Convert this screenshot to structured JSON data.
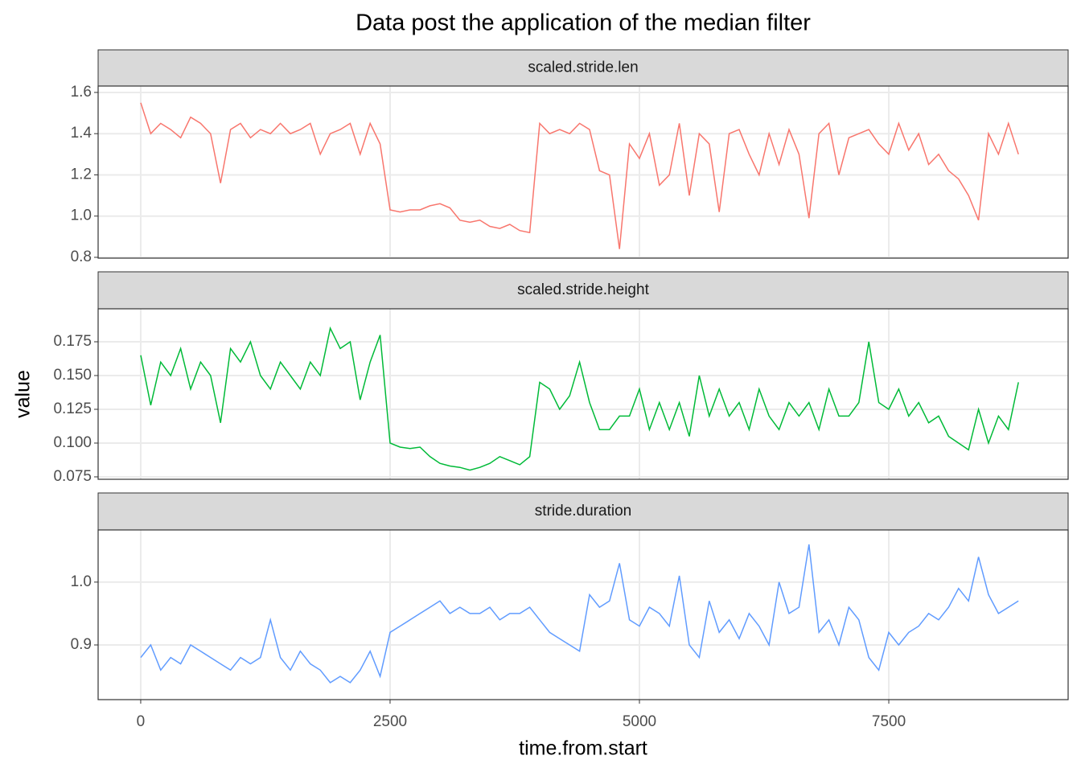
{
  "chart_data": {
    "type": "line",
    "facet": true,
    "title": "Data post the application of the median filter",
    "x_label": "time.from.start",
    "y_label": "value",
    "xlim": [
      -427,
      9298
    ],
    "xticks": [
      0,
      2500,
      5000,
      7500
    ],
    "grid": true,
    "x": [
      0,
      100,
      200,
      300,
      400,
      500,
      600,
      700,
      800,
      900,
      1000,
      1100,
      1200,
      1300,
      1400,
      1500,
      1600,
      1700,
      1800,
      1900,
      2000,
      2100,
      2200,
      2300,
      2400,
      2500,
      2600,
      2700,
      2800,
      2900,
      3000,
      3100,
      3200,
      3300,
      3400,
      3500,
      3600,
      3700,
      3800,
      3900,
      4000,
      4100,
      4200,
      4300,
      4400,
      4500,
      4600,
      4700,
      4800,
      4900,
      5000,
      5100,
      5200,
      5300,
      5400,
      5500,
      5600,
      5700,
      5800,
      5900,
      6000,
      6100,
      6200,
      6300,
      6400,
      6500,
      6600,
      6700,
      6800,
      6900,
      7000,
      7100,
      7200,
      7300,
      7400,
      7500,
      7600,
      7700,
      7800,
      7900,
      8000,
      8100,
      8200,
      8300,
      8400,
      8500,
      8600,
      8700,
      8800
    ],
    "series": [
      {
        "name": "scaled.stride.len",
        "color": "#f8766d",
        "ylim": [
          0.796,
          1.631
        ],
        "yticks": [
          0.8,
          {
            "value": 1.0,
            "label": "1.0"
          },
          1.2,
          1.4,
          1.6
        ],
        "values": [
          1.55,
          1.4,
          1.45,
          1.42,
          1.38,
          1.48,
          1.45,
          1.4,
          1.16,
          1.42,
          1.45,
          1.38,
          1.42,
          1.4,
          1.45,
          1.4,
          1.42,
          1.45,
          1.3,
          1.4,
          1.42,
          1.45,
          1.3,
          1.45,
          1.35,
          1.03,
          1.02,
          1.03,
          1.03,
          1.05,
          1.06,
          1.04,
          0.98,
          0.97,
          0.98,
          0.95,
          0.94,
          0.96,
          0.93,
          0.92,
          1.45,
          1.4,
          1.42,
          1.4,
          1.45,
          1.42,
          1.22,
          1.2,
          0.84,
          1.35,
          1.28,
          1.4,
          1.15,
          1.2,
          1.45,
          1.1,
          1.4,
          1.35,
          1.02,
          1.4,
          1.42,
          1.3,
          1.2,
          1.4,
          1.25,
          1.42,
          1.3,
          0.99,
          1.4,
          1.45,
          1.2,
          1.38,
          1.4,
          1.42,
          1.35,
          1.3,
          1.45,
          1.32,
          1.4,
          1.25,
          1.3,
          1.22,
          1.18,
          1.1,
          0.98,
          1.4,
          1.3,
          1.45,
          1.3
        ]
      },
      {
        "name": "scaled.stride.height",
        "color": "#00ba38",
        "ylim": [
          0.0732,
          0.1994
        ],
        "yticks": [
          0.075,
          {
            "value": 0.1,
            "label": "0.100"
          },
          0.125,
          {
            "value": 0.15,
            "label": "0.150"
          },
          0.175
        ],
        "values": [
          0.165,
          0.128,
          0.16,
          0.15,
          0.17,
          0.14,
          0.16,
          0.15,
          0.115,
          0.17,
          0.16,
          0.175,
          0.15,
          0.14,
          0.16,
          0.15,
          0.14,
          0.16,
          0.15,
          0.185,
          0.17,
          0.175,
          0.132,
          0.16,
          0.18,
          0.1,
          0.097,
          0.096,
          0.097,
          0.09,
          0.085,
          0.083,
          0.082,
          0.08,
          0.082,
          0.085,
          0.09,
          0.087,
          0.084,
          0.09,
          0.145,
          0.14,
          0.125,
          0.135,
          0.16,
          0.13,
          0.11,
          0.11,
          0.12,
          0.12,
          0.14,
          0.11,
          0.13,
          0.11,
          0.13,
          0.105,
          0.15,
          0.12,
          0.14,
          0.12,
          0.13,
          0.11,
          0.14,
          0.12,
          0.11,
          0.13,
          0.12,
          0.13,
          0.11,
          0.14,
          0.12,
          0.12,
          0.13,
          0.175,
          0.13,
          0.125,
          0.14,
          0.12,
          0.13,
          0.115,
          0.12,
          0.105,
          0.1,
          0.095,
          0.125,
          0.1,
          0.12,
          0.11,
          0.145
        ]
      },
      {
        "name": "stride.duration",
        "color": "#619cff",
        "ylim": [
          0.813,
          1.083
        ],
        "yticks": [
          0.9,
          {
            "value": 1.0,
            "label": "1.0"
          }
        ],
        "values": [
          0.88,
          0.9,
          0.86,
          0.88,
          0.87,
          0.9,
          0.89,
          0.88,
          0.87,
          0.86,
          0.88,
          0.87,
          0.88,
          0.94,
          0.88,
          0.86,
          0.89,
          0.87,
          0.86,
          0.84,
          0.85,
          0.84,
          0.86,
          0.89,
          0.85,
          0.92,
          0.93,
          0.94,
          0.95,
          0.96,
          0.97,
          0.95,
          0.96,
          0.95,
          0.95,
          0.96,
          0.94,
          0.95,
          0.95,
          0.96,
          0.94,
          0.92,
          0.91,
          0.9,
          0.89,
          0.98,
          0.96,
          0.97,
          1.03,
          0.94,
          0.93,
          0.96,
          0.95,
          0.93,
          1.01,
          0.9,
          0.88,
          0.97,
          0.92,
          0.94,
          0.91,
          0.95,
          0.93,
          0.9,
          1.0,
          0.95,
          0.96,
          1.06,
          0.92,
          0.94,
          0.9,
          0.96,
          0.94,
          0.88,
          0.86,
          0.92,
          0.9,
          0.92,
          0.93,
          0.95,
          0.94,
          0.96,
          0.99,
          0.97,
          1.04,
          0.98,
          0.95,
          0.96,
          0.97
        ]
      }
    ]
  }
}
